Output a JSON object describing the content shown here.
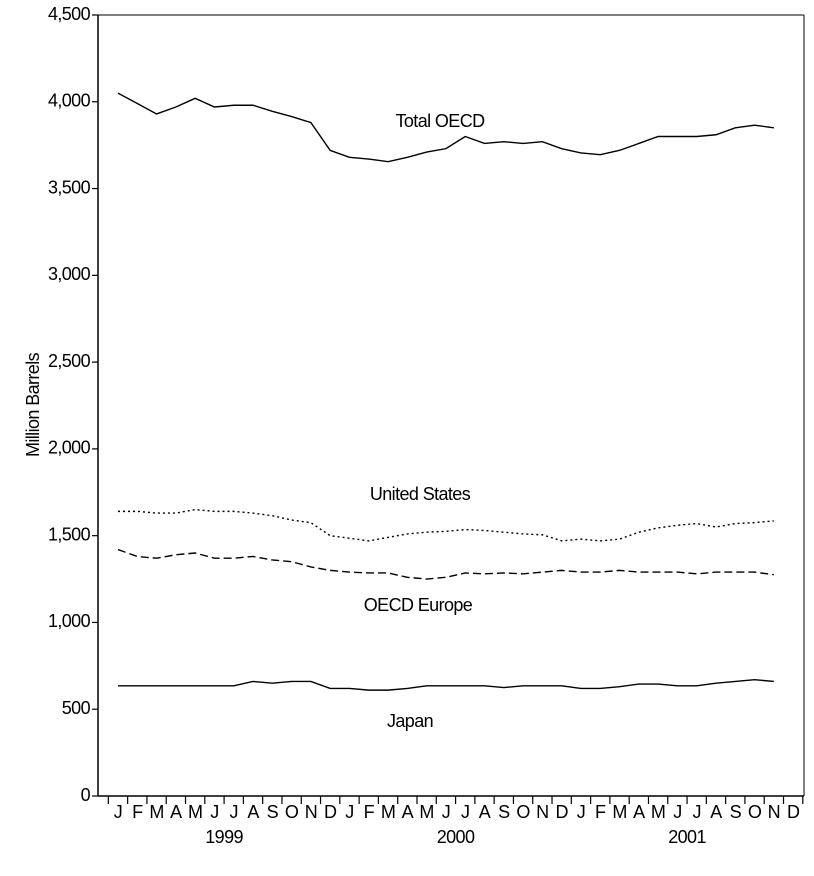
{
  "chart_data": {
    "type": "line",
    "y_label": "Million Barrels",
    "categories": [
      "J",
      "F",
      "M",
      "A",
      "M",
      "J",
      "J",
      "A",
      "S",
      "O",
      "N",
      "D",
      "J",
      "F",
      "M",
      "A",
      "M",
      "J",
      "J",
      "A",
      "S",
      "O",
      "N",
      "D",
      "J",
      "F",
      "M",
      "A",
      "M",
      "J",
      "J",
      "A",
      "S",
      "O",
      "N",
      "D"
    ],
    "years": [
      "1999",
      "2000",
      "2001"
    ],
    "ylim": [
      0,
      4500
    ],
    "yticks": [
      0,
      500,
      {
        "value": 1000,
        "label": "1,000"
      },
      {
        "value": 1500,
        "label": "1,500"
      },
      {
        "value": 2000,
        "label": "2,000"
      },
      {
        "value": 2500,
        "label": "2,500"
      },
      {
        "value": 3000,
        "label": "3,000"
      },
      {
        "value": 3500,
        "label": "3,500"
      },
      {
        "value": 4000,
        "label": "4,000"
      },
      {
        "value": 4500,
        "label": "4,500"
      }
    ],
    "grid": false,
    "series": [
      {
        "name": "Total OECD",
        "color": "#000000",
        "dash": "solid",
        "values": [
          4050,
          3990,
          3930,
          3970,
          4020,
          3970,
          3980,
          3980,
          3945,
          3915,
          3880,
          3720,
          3680,
          3670,
          3655,
          3680,
          3710,
          3730,
          3800,
          3760,
          3770,
          3760,
          3770,
          3730,
          3705,
          3695,
          3720,
          3760,
          3800,
          3800,
          3800,
          3810,
          3850,
          3865,
          3850,
          null
        ]
      },
      {
        "name": "United States",
        "color": "#000000",
        "dash": "dotted",
        "values": [
          1640,
          1640,
          1630,
          1630,
          1650,
          1640,
          1640,
          1630,
          1615,
          1590,
          1575,
          1500,
          1485,
          1470,
          1490,
          1510,
          1520,
          1525,
          1535,
          1530,
          1520,
          1510,
          1505,
          1470,
          1480,
          1470,
          1480,
          1520,
          1545,
          1560,
          1570,
          1550,
          1570,
          1575,
          1585,
          null
        ]
      },
      {
        "name": "OECD Europe",
        "color": "#000000",
        "dash": "dashed",
        "values": [
          1420,
          1380,
          1370,
          1390,
          1400,
          1370,
          1370,
          1380,
          1360,
          1350,
          1320,
          1300,
          1290,
          1285,
          1285,
          1260,
          1250,
          1260,
          1285,
          1280,
          1285,
          1280,
          1290,
          1300,
          1290,
          1290,
          1300,
          1290,
          1290,
          1290,
          1280,
          1290,
          1290,
          1290,
          1275,
          null
        ]
      },
      {
        "name": "Japan",
        "color": "#000000",
        "dash": "solid",
        "values": [
          635,
          635,
          635,
          635,
          635,
          635,
          635,
          660,
          650,
          660,
          660,
          620,
          620,
          610,
          610,
          620,
          635,
          635,
          635,
          635,
          625,
          635,
          635,
          635,
          620,
          620,
          630,
          645,
          645,
          635,
          635,
          650,
          660,
          670,
          660,
          null
        ]
      }
    ]
  }
}
